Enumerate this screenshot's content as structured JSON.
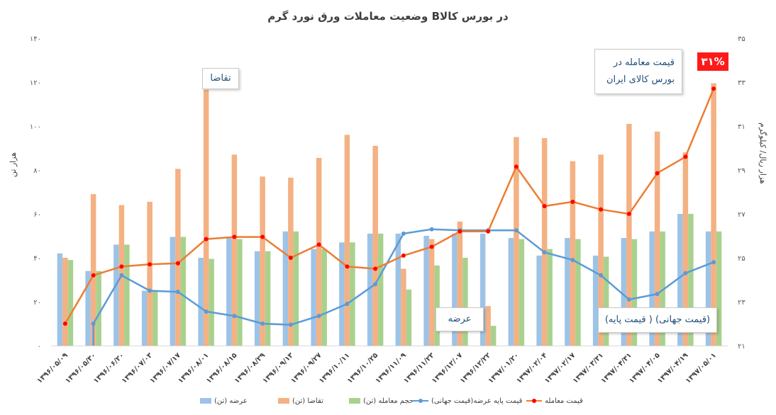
{
  "chart_data": {
    "type": "bar",
    "title": "وضعیت معاملات ورق نورد گرم   Bدر بورس کالا",
    "ylabel_left": "هزار تن",
    "ylabel_right": "هزار ریال/ کیلوگرم",
    "ylim_left": [
      0,
      140
    ],
    "ylim_right": [
      21,
      35
    ],
    "left_ticks": [
      "۰",
      "۲۰",
      "۴۰",
      "۶۰",
      "۸۰",
      "۱۰۰",
      "۱۲۰",
      "۱۴۰"
    ],
    "right_ticks": [
      "۲۱",
      "۲۳",
      "۲۵",
      "۲۷",
      "۲۹",
      "۳۱",
      "۳۳",
      "۳۵"
    ],
    "categories": [
      "۱۳۹۶/۰۵/۰۹",
      "۱۳۹۶/۰۵/۳۰",
      "۱۳۹۶/۰۶/۲۰",
      "۱۳۹۶/۰۷/۰۳",
      "۱۳۹۶/۰۷/۱۷",
      "۱۳۹۶/۰۸/۰۱",
      "۱۳۹۶/۰۸/۱۵",
      "۱۳۹۶/۰۸/۲۹",
      "۱۳۹۶/۰۹/۱۳",
      "۱۳۹۶/۰۹/۲۷",
      "۱۳۹۶/۱۰/۱۱",
      "۱۳۹۶/۱۰/۲۵",
      "۱۳۹۶/۱۱/۰۹",
      "۱۳۹۶/۱۱/۲۳",
      "۱۳۹۶/۱۲/۰۷",
      "۱۳۹۶/۱۲/۲۲",
      "۱۳۹۷/۰۱/۲۰",
      "۱۳۹۷/۰۲/۰۴",
      "۱۳۹۷/۰۲/۱۷",
      "۱۳۹۷/۰۳/۳۱",
      "۱۳۹۷/۰۴/۳۱",
      "۱۳۹۷/۰۴/۰۵",
      "۱۳۹۷/۰۴/۱۹",
      "۱۳۹۷/۰۵/۰۱"
    ],
    "series": [
      {
        "name": "عرضه (تن)",
        "kind": "bar",
        "axis": "left",
        "color": "#9dc3e6",
        "values": [
          42,
          34,
          46,
          25,
          49.5,
          40,
          49,
          43,
          52,
          44,
          47,
          51,
          51,
          50,
          51,
          51,
          49,
          41,
          49,
          41,
          49,
          52,
          60,
          52
        ]
      },
      {
        "name": "تقاضا (تن)",
        "kind": "bar",
        "axis": "left",
        "color": "#f4b183",
        "values": [
          40,
          69,
          64,
          65.5,
          80.5,
          116.5,
          87,
          77,
          76.5,
          85.5,
          96,
          91,
          35,
          48.5,
          56.5,
          18,
          95,
          94.5,
          84,
          87,
          101,
          97.5,
          88,
          119.5
        ]
      },
      {
        "name": "حجم معامله (تن)",
        "kind": "bar",
        "axis": "left",
        "color": "#a9d18e",
        "values": [
          39,
          34,
          46,
          25,
          49.5,
          39.5,
          48.5,
          43,
          52,
          44,
          47,
          51,
          25.5,
          36.5,
          40,
          9,
          48.5,
          44,
          48.5,
          40.5,
          48.5,
          52,
          60,
          52
        ]
      },
      {
        "name": "قیمت پایه عرضه(قیمت جهانی)",
        "kind": "line",
        "axis": "right",
        "color": "#5b9bd5",
        "marker": "#5b9bd5",
        "values": [
          null,
          22.0,
          24.2,
          23.5,
          23.45,
          22.55,
          22.35,
          22.0,
          21.95,
          22.35,
          22.9,
          23.8,
          26.1,
          26.3,
          26.25,
          26.25,
          26.25,
          25.25,
          24.9,
          24.2,
          23.1,
          23.35,
          24.3,
          24.8
        ],
        "pre_start": 0.0
      },
      {
        "name": "قیمت معامله",
        "kind": "line",
        "axis": "right",
        "color": "#ed7d31",
        "marker": "#ff0000",
        "values": [
          22.0,
          24.2,
          24.6,
          24.7,
          24.75,
          25.85,
          25.95,
          25.95,
          25.0,
          25.6,
          24.6,
          24.5,
          25.1,
          25.5,
          26.2,
          26.2,
          29.15,
          27.35,
          27.55,
          27.2,
          27.0,
          28.85,
          29.6,
          32.7
        ]
      }
    ],
    "annotations": {
      "demand": "تقاضا",
      "supply": "عرضه",
      "world_price": "(قیمت جهانی) ( قیمت پایه)",
      "exchange_price": "قیمت معامله در بورس کالای ایران",
      "percent_badge": "۳۱%"
    },
    "legend": {
      "placement": "bottom",
      "items": [
        "عرضه (تن)",
        "تقاضا (تن)",
        "حجم معامله (تن)",
        "قیمت پایه عرضه(قیمت جهانی)",
        "قیمت معامله"
      ]
    },
    "grid": false
  }
}
